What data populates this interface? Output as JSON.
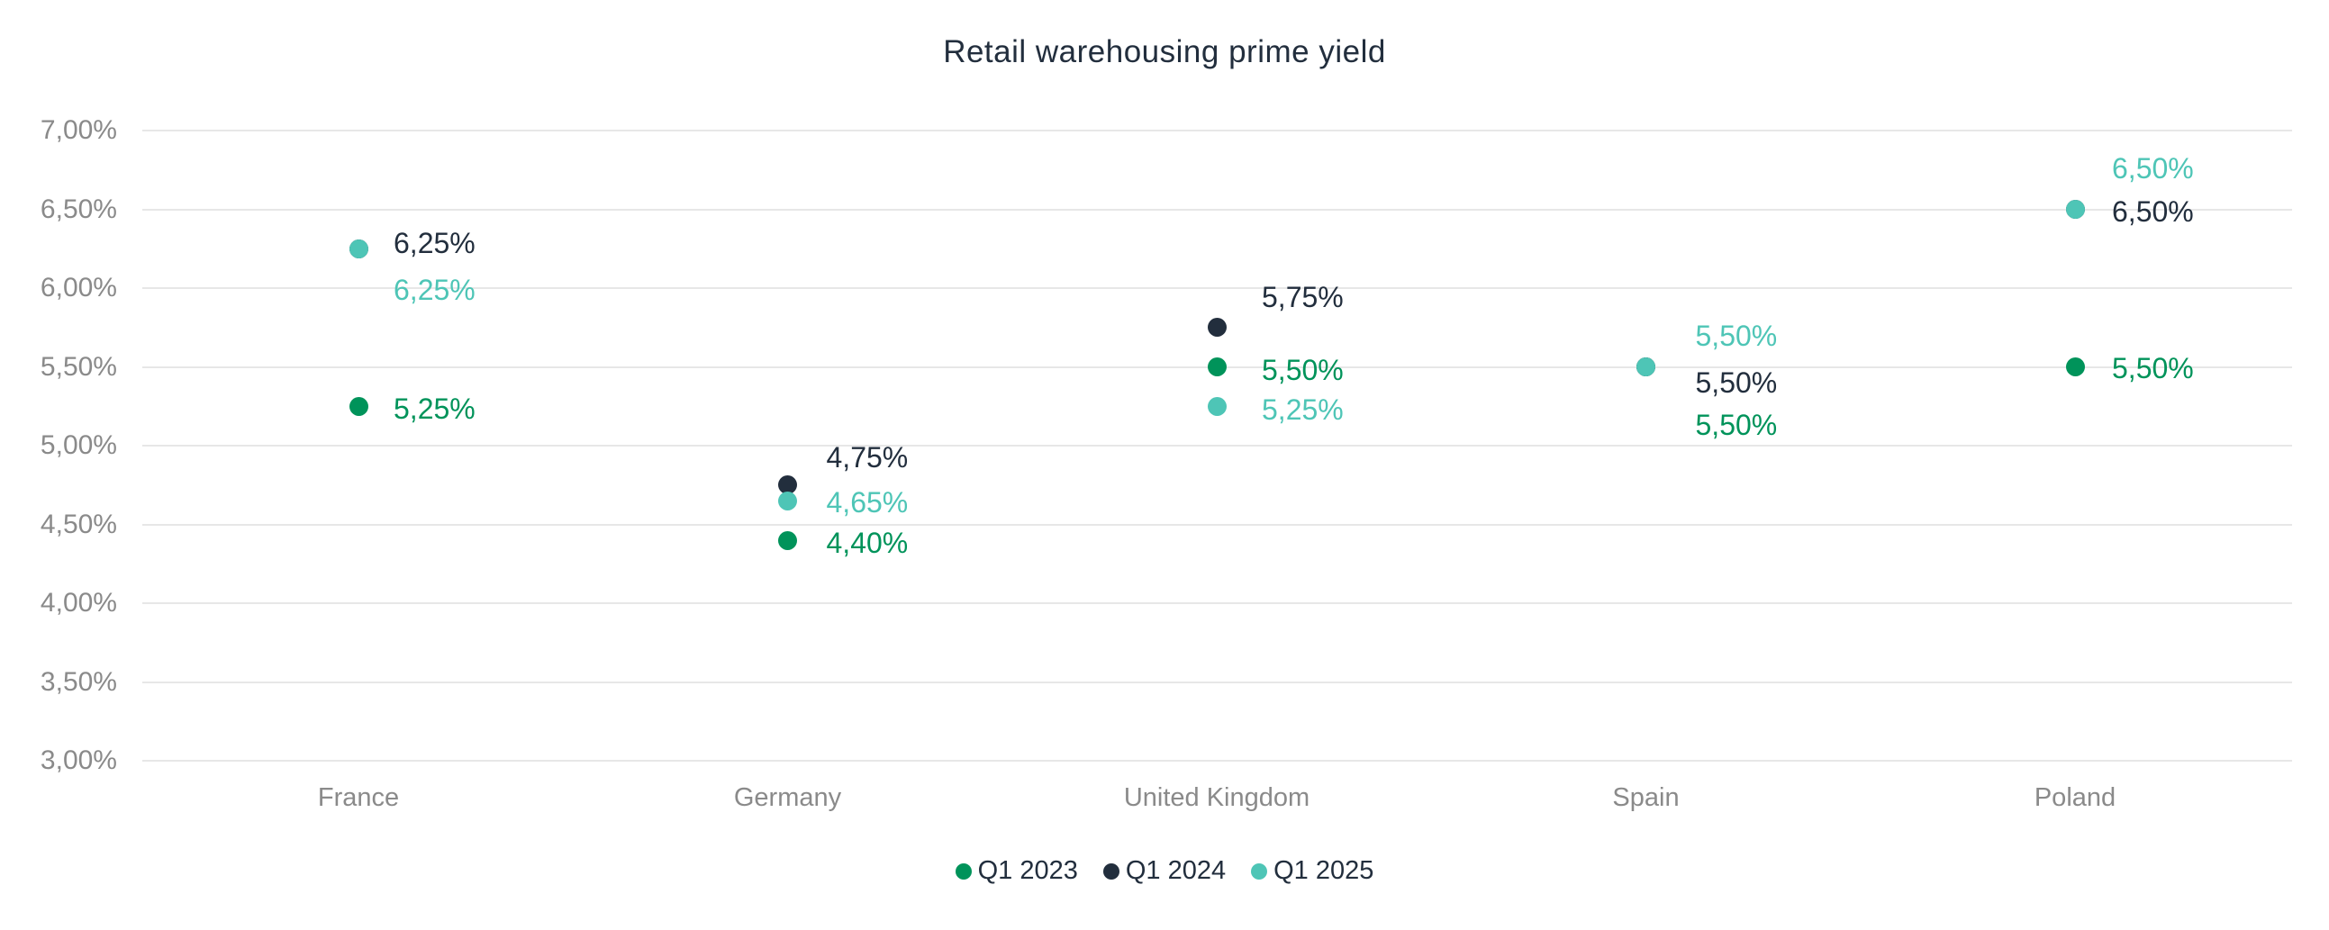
{
  "chart_data": {
    "type": "scatter",
    "title": "Retail warehousing prime yield",
    "categories": [
      "France",
      "Germany",
      "United Kingdom",
      "Spain",
      "Poland"
    ],
    "y_ticks": [
      "7,00%",
      "6,50%",
      "6,00%",
      "5,50%",
      "5,00%",
      "4,50%",
      "4,00%",
      "3,50%",
      "3,00%"
    ],
    "ylim": [
      3.0,
      7.0
    ],
    "y_step": 0.5,
    "grid": true,
    "legend_position": "bottom",
    "colors": {
      "q1_2023": "#00935A",
      "q1_2024": "#222E3D",
      "q1_2025": "#4EC5B6",
      "gridline": "#E7E7E7",
      "axis_text": "#8A8A8A",
      "title_text": "#222E3D"
    },
    "series": [
      {
        "name": "Q1 2023",
        "color": "#00935A",
        "values": [
          5.25,
          4.4,
          5.5,
          5.5,
          5.5
        ],
        "data_labels": [
          "5,25%",
          "4,40%",
          "5,50%",
          "5,50%",
          "5,50%"
        ]
      },
      {
        "name": "Q1 2024",
        "color": "#222E3D",
        "values": [
          6.25,
          4.75,
          5.75,
          5.5,
          6.5
        ],
        "data_labels": [
          "6,25%",
          "4,75%",
          "5,75%",
          "5,50%",
          "6,50%"
        ]
      },
      {
        "name": "Q1 2025",
        "color": "#4EC5B6",
        "values": [
          6.25,
          4.65,
          5.25,
          5.5,
          6.5
        ],
        "data_labels": [
          "6,25%",
          "4,65%",
          "5,25%",
          "5,50%",
          "6,50%"
        ]
      }
    ],
    "label_layout": {
      "dx": [
        39,
        43,
        50,
        55,
        41
      ],
      "dy": [
        [
          3,
          3,
          3,
          64,
          1
        ],
        [
          -6,
          -31,
          -34,
          17,
          2
        ],
        [
          46,
          2,
          4,
          -35,
          -46
        ]
      ]
    }
  }
}
